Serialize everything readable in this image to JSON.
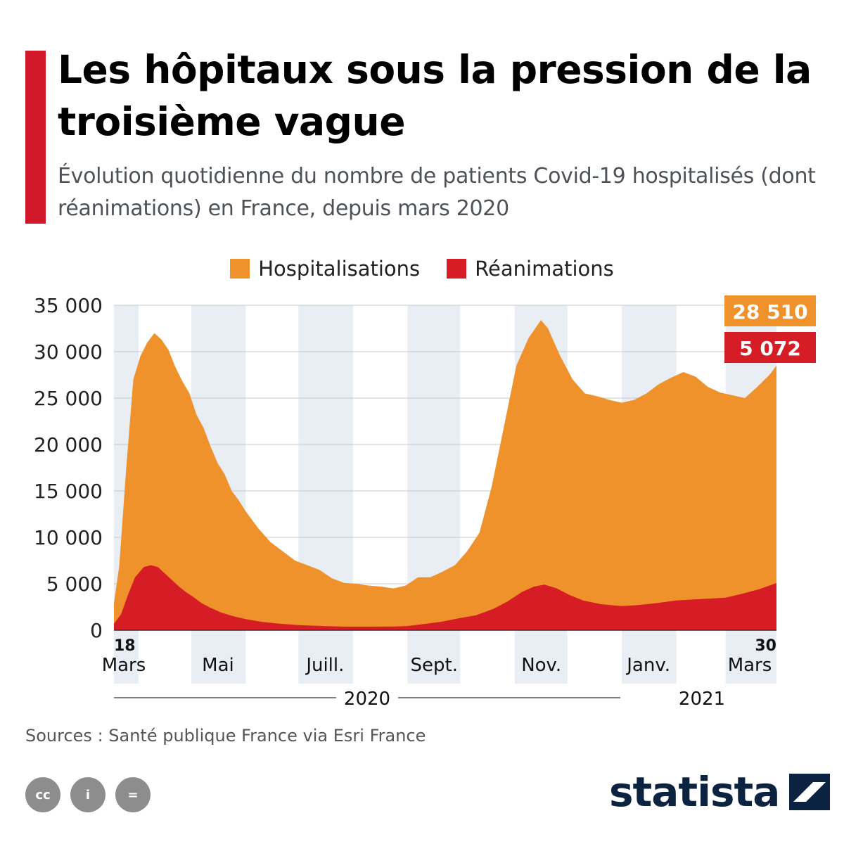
{
  "header": {
    "title": "Les hôpitaux sous la pression de la troisième vague",
    "subtitle": "Évolution quotidienne du nombre de patients Covid-19 hospitalisés (dont réanimations) en France, depuis mars 2020"
  },
  "colors": {
    "accent": "#d0182a",
    "hospitalisations": "#ef922b",
    "reanimations": "#d61c24",
    "band": "#e9eef5",
    "brand": "#0b2341"
  },
  "legend": {
    "hospitalisations": "Hospitalisations",
    "reanimations": "Réanimations"
  },
  "chart_data": {
    "type": "area",
    "x_start": "2020-03-18",
    "x_end": "2021-03-30",
    "ylim": [
      0,
      35000
    ],
    "yticks": [
      "0",
      "5 000",
      "10 000",
      "15 000",
      "20 000",
      "25 000",
      "30 000",
      "35 000"
    ],
    "grid": true,
    "legend_position": "top-center",
    "x_tick_labels": [
      {
        "label": "Mars",
        "day": "18",
        "date": "2020-03-18"
      },
      {
        "label": "Mai",
        "date": "2020-05-01"
      },
      {
        "label": "Juill.",
        "date": "2020-07-01"
      },
      {
        "label": "Sept.",
        "date": "2020-09-01"
      },
      {
        "label": "Nov.",
        "date": "2020-11-01"
      },
      {
        "label": "Janv.",
        "date": "2021-01-01"
      },
      {
        "label": "Mars",
        "day": "30",
        "date": "2021-03-30"
      }
    ],
    "years": [
      "2020",
      "2021"
    ],
    "series": [
      {
        "name": "Hospitalisations",
        "last_label": "28 510",
        "points": [
          [
            "2020-03-18",
            2900
          ],
          [
            "2020-03-21",
            6900
          ],
          [
            "2020-03-25",
            17500
          ],
          [
            "2020-03-29",
            27000
          ],
          [
            "2020-04-02",
            29500
          ],
          [
            "2020-04-06",
            31000
          ],
          [
            "2020-04-10",
            32000
          ],
          [
            "2020-04-14",
            31300
          ],
          [
            "2020-04-18",
            30200
          ],
          [
            "2020-04-22",
            28300
          ],
          [
            "2020-04-26",
            26800
          ],
          [
            "2020-04-30",
            25500
          ],
          [
            "2020-05-04",
            23200
          ],
          [
            "2020-05-08",
            21800
          ],
          [
            "2020-05-12",
            19800
          ],
          [
            "2020-05-16",
            18000
          ],
          [
            "2020-05-20",
            16800
          ],
          [
            "2020-05-24",
            15000
          ],
          [
            "2020-05-28",
            14000
          ],
          [
            "2020-06-01",
            12800
          ],
          [
            "2020-06-08",
            11000
          ],
          [
            "2020-06-15",
            9500
          ],
          [
            "2020-06-22",
            8500
          ],
          [
            "2020-06-29",
            7500
          ],
          [
            "2020-07-06",
            7000
          ],
          [
            "2020-07-13",
            6500
          ],
          [
            "2020-07-20",
            5600
          ],
          [
            "2020-07-27",
            5100
          ],
          [
            "2020-08-03",
            5000
          ],
          [
            "2020-08-10",
            4800
          ],
          [
            "2020-08-17",
            4700
          ],
          [
            "2020-08-24",
            4500
          ],
          [
            "2020-08-31",
            4800
          ],
          [
            "2020-09-07",
            5700
          ],
          [
            "2020-09-14",
            5700
          ],
          [
            "2020-09-21",
            6300
          ],
          [
            "2020-09-28",
            7000
          ],
          [
            "2020-10-05",
            8500
          ],
          [
            "2020-10-12",
            10500
          ],
          [
            "2020-10-19",
            15500
          ],
          [
            "2020-10-26",
            22000
          ],
          [
            "2020-11-02",
            28500
          ],
          [
            "2020-11-09",
            31500
          ],
          [
            "2020-11-16",
            33400
          ],
          [
            "2020-11-20",
            32500
          ],
          [
            "2020-11-27",
            29500
          ],
          [
            "2020-12-04",
            27000
          ],
          [
            "2020-12-11",
            25500
          ],
          [
            "2020-12-18",
            25200
          ],
          [
            "2020-12-25",
            24800
          ],
          [
            "2021-01-01",
            24500
          ],
          [
            "2021-01-08",
            24800
          ],
          [
            "2021-01-15",
            25500
          ],
          [
            "2021-01-22",
            26500
          ],
          [
            "2021-01-29",
            27200
          ],
          [
            "2021-02-05",
            27800
          ],
          [
            "2021-02-12",
            27300
          ],
          [
            "2021-02-19",
            26200
          ],
          [
            "2021-02-26",
            25600
          ],
          [
            "2021-03-05",
            25300
          ],
          [
            "2021-03-12",
            25000
          ],
          [
            "2021-03-19",
            26200
          ],
          [
            "2021-03-26",
            27500
          ],
          [
            "2021-03-30",
            28510
          ]
        ]
      },
      {
        "name": "Réanimations",
        "last_label": "5 072",
        "points": [
          [
            "2020-03-18",
            700
          ],
          [
            "2020-03-22",
            1700
          ],
          [
            "2020-03-26",
            3800
          ],
          [
            "2020-03-30",
            5700
          ],
          [
            "2020-04-04",
            6800
          ],
          [
            "2020-04-08",
            7000
          ],
          [
            "2020-04-12",
            6800
          ],
          [
            "2020-04-16",
            6100
          ],
          [
            "2020-04-20",
            5400
          ],
          [
            "2020-04-24",
            4700
          ],
          [
            "2020-04-28",
            4100
          ],
          [
            "2020-05-02",
            3600
          ],
          [
            "2020-05-07",
            2900
          ],
          [
            "2020-05-12",
            2400
          ],
          [
            "2020-05-18",
            1900
          ],
          [
            "2020-05-25",
            1500
          ],
          [
            "2020-06-01",
            1200
          ],
          [
            "2020-06-10",
            900
          ],
          [
            "2020-06-20",
            700
          ],
          [
            "2020-07-01",
            550
          ],
          [
            "2020-07-15",
            450
          ],
          [
            "2020-07-28",
            380
          ],
          [
            "2020-08-10",
            380
          ],
          [
            "2020-08-25",
            400
          ],
          [
            "2020-09-01",
            450
          ],
          [
            "2020-09-10",
            650
          ],
          [
            "2020-09-20",
            900
          ],
          [
            "2020-10-01",
            1300
          ],
          [
            "2020-10-10",
            1600
          ],
          [
            "2020-10-20",
            2300
          ],
          [
            "2020-10-28",
            3100
          ],
          [
            "2020-11-05",
            4100
          ],
          [
            "2020-11-12",
            4700
          ],
          [
            "2020-11-18",
            4900
          ],
          [
            "2020-11-25",
            4500
          ],
          [
            "2020-12-02",
            3800
          ],
          [
            "2020-12-10",
            3200
          ],
          [
            "2020-12-20",
            2800
          ],
          [
            "2021-01-01",
            2600
          ],
          [
            "2021-01-10",
            2700
          ],
          [
            "2021-01-20",
            2900
          ],
          [
            "2021-02-01",
            3200
          ],
          [
            "2021-02-15",
            3350
          ],
          [
            "2021-03-01",
            3500
          ],
          [
            "2021-03-10",
            3900
          ],
          [
            "2021-03-20",
            4400
          ],
          [
            "2021-03-30",
            5072
          ]
        ]
      }
    ]
  },
  "footer": {
    "source": "Sources : Santé publique France via Esri France",
    "brand": "statista",
    "cc_icons": [
      {
        "name": "cc-icon",
        "text": "cc"
      },
      {
        "name": "by-icon",
        "text": "i"
      },
      {
        "name": "nd-icon",
        "text": "="
      }
    ]
  }
}
